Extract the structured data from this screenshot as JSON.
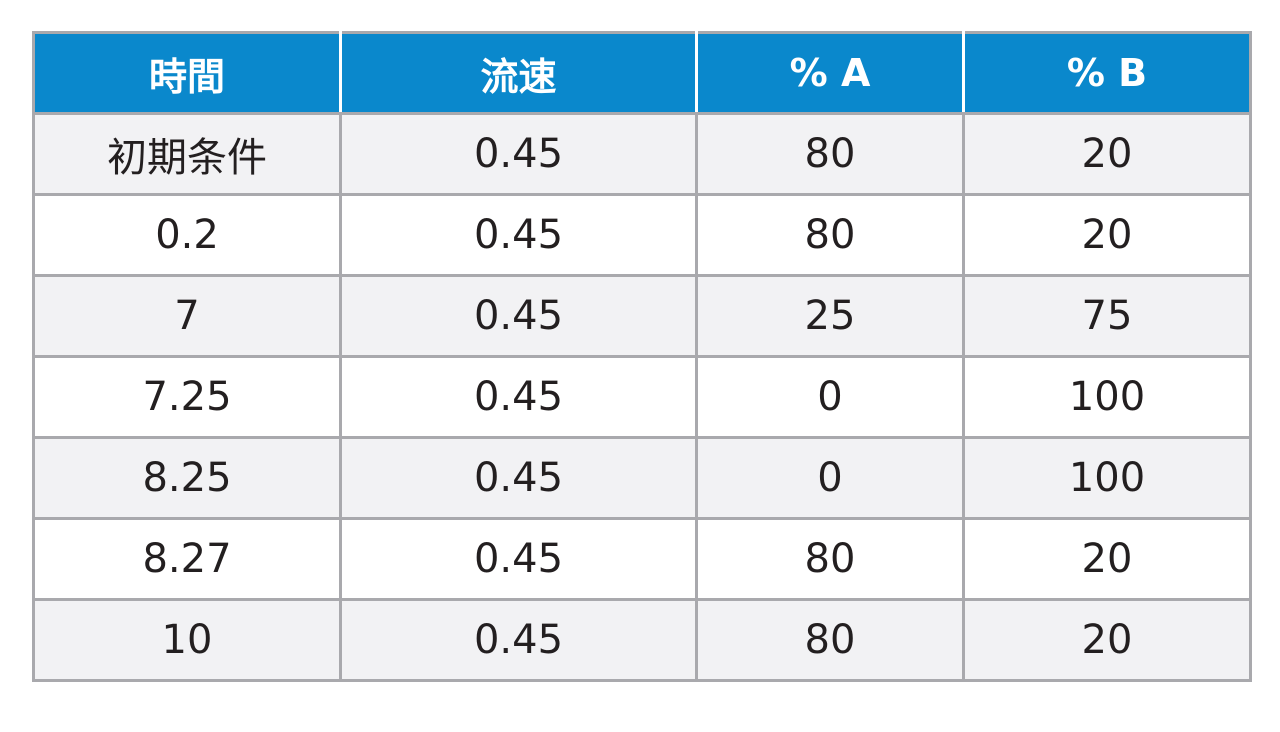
{
  "table": {
    "headers": [
      "時間",
      "流速",
      "% A",
      "% B"
    ],
    "rows": [
      [
        "初期条件",
        "0.45",
        "80",
        "20"
      ],
      [
        "0.2",
        "0.45",
        "80",
        "20"
      ],
      [
        "7",
        "0.45",
        "25",
        "75"
      ],
      [
        "7.25",
        "0.45",
        "0",
        "100"
      ],
      [
        "8.25",
        "0.45",
        "0",
        "100"
      ],
      [
        "8.27",
        "0.45",
        "80",
        "20"
      ],
      [
        "10",
        "0.45",
        "80",
        "20"
      ]
    ],
    "colors": {
      "header_bg": "#0a88cc",
      "header_text": "#ffffff",
      "row_shaded": "#f2f2f4",
      "row_plain": "#ffffff",
      "border": "#a9a9ad",
      "text": "#231f20"
    }
  }
}
